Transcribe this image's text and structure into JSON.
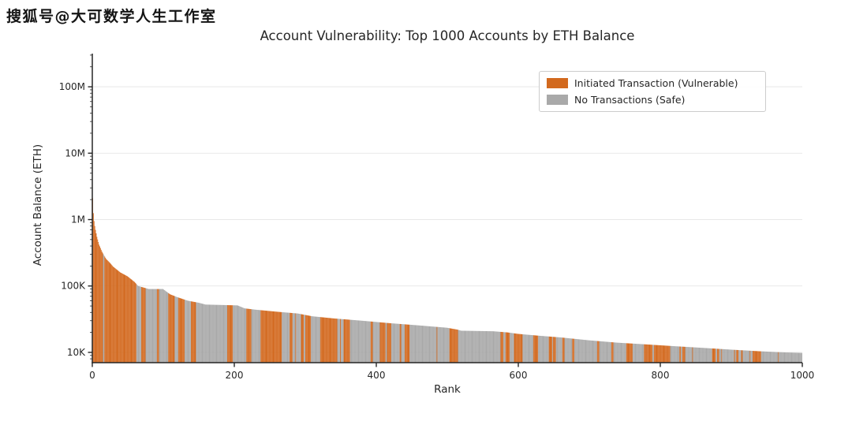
{
  "watermark": "搜狐号@大可数学人生工作室",
  "chart_data": {
    "type": "bar",
    "title": "Account Vulnerability: Top 1000 Accounts by ETH Balance",
    "xlabel": "Rank",
    "ylabel": "Account Balance (ETH)",
    "y_scale": "log",
    "ylim": [
      7000,
      316000000
    ],
    "xlim": [
      0,
      1000
    ],
    "n_bars": 1000,
    "grid": true,
    "legend_position": "upper right",
    "x_ticks": [
      0,
      200,
      400,
      600,
      800,
      1000
    ],
    "y_ticks": [
      {
        "label": "10K",
        "value": 10000
      },
      {
        "label": "100K",
        "value": 100000
      },
      {
        "label": "1M",
        "value": 1000000
      },
      {
        "label": "10M",
        "value": 10000000
      },
      {
        "label": "100M",
        "value": 100000000
      }
    ],
    "series": [
      {
        "name": "Initiated Transaction (Vulnerable)",
        "color": "#d2691e"
      },
      {
        "name": "No Transactions (Safe)",
        "color": "#a9a9a9"
      }
    ],
    "envelope_anchors": [
      [
        1,
        2100000
      ],
      [
        2,
        1250000
      ],
      [
        3,
        950000
      ],
      [
        4,
        800000
      ],
      [
        5,
        700000
      ],
      [
        7,
        550000
      ],
      [
        10,
        420000
      ],
      [
        14,
        330000
      ],
      [
        20,
        255000
      ],
      [
        25,
        225000
      ],
      [
        30,
        195000
      ],
      [
        40,
        160000
      ],
      [
        50,
        140000
      ],
      [
        60,
        115000
      ],
      [
        65,
        100000
      ],
      [
        80,
        90000
      ],
      [
        100,
        90000
      ],
      [
        110,
        75000
      ],
      [
        120,
        68000
      ],
      [
        135,
        60000
      ],
      [
        150,
        56000
      ],
      [
        160,
        52500
      ],
      [
        205,
        51000
      ],
      [
        215,
        46000
      ],
      [
        230,
        44000
      ],
      [
        260,
        41000
      ],
      [
        290,
        38500
      ],
      [
        310,
        35000
      ],
      [
        340,
        32500
      ],
      [
        380,
        30000
      ],
      [
        420,
        27500
      ],
      [
        460,
        25500
      ],
      [
        500,
        23500
      ],
      [
        515,
        22000
      ],
      [
        520,
        21200
      ],
      [
        565,
        20800
      ],
      [
        585,
        20000
      ],
      [
        600,
        19000
      ],
      [
        630,
        17800
      ],
      [
        660,
        16800
      ],
      [
        700,
        15200
      ],
      [
        740,
        14000
      ],
      [
        780,
        13200
      ],
      [
        820,
        12400
      ],
      [
        860,
        11700
      ],
      [
        900,
        11000
      ],
      [
        940,
        10400
      ],
      [
        975,
        10000
      ],
      [
        1000,
        9800
      ]
    ],
    "color_segments": [
      {
        "from": 1,
        "to": 1,
        "orange_ratio": 1.0
      },
      {
        "from": 2,
        "to": 47,
        "orange_ratio": 0.6
      },
      {
        "from": 48,
        "to": 75,
        "orange_ratio": 0.65
      },
      {
        "from": 76,
        "to": 88,
        "orange_ratio": 0.0
      },
      {
        "from": 89,
        "to": 148,
        "orange_ratio": 0.5
      },
      {
        "from": 149,
        "to": 185,
        "orange_ratio": 0.03
      },
      {
        "from": 186,
        "to": 228,
        "orange_ratio": 0.5
      },
      {
        "from": 229,
        "to": 243,
        "orange_ratio": 0.35
      },
      {
        "from": 244,
        "to": 259,
        "orange_ratio": 0.95
      },
      {
        "from": 260,
        "to": 515,
        "orange_ratio": 0.45
      },
      {
        "from": 516,
        "to": 565,
        "orange_ratio": 0.0
      },
      {
        "from": 566,
        "to": 760,
        "orange_ratio": 0.48
      },
      {
        "from": 761,
        "to": 967,
        "orange_ratio": 0.42
      },
      {
        "from": 968,
        "to": 1000,
        "orange_ratio": 0.0
      }
    ]
  }
}
